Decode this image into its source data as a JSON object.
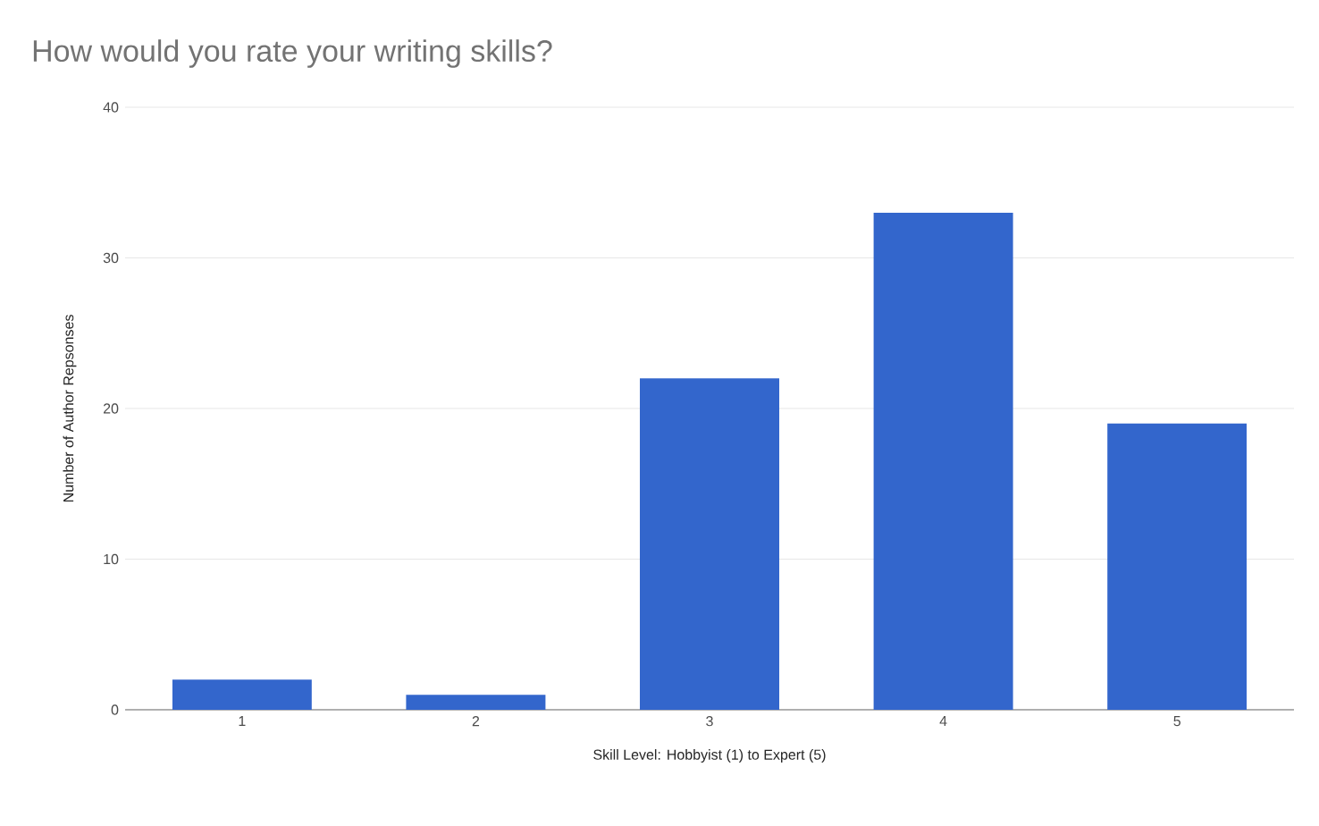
{
  "chart_data": {
    "type": "bar",
    "title": "How would you rate your writing skills?",
    "xlabel": "Skill Level: Hobbyist (1) to Expert (5)",
    "ylabel": "Number of Author Repsonses",
    "categories": [
      "1",
      "2",
      "3",
      "4",
      "5"
    ],
    "values": [
      2,
      1,
      22,
      33,
      19
    ],
    "color": "#3366cc",
    "ylim": [
      0,
      40
    ],
    "yticks": [
      0,
      10,
      20,
      30,
      40
    ],
    "grid": "y"
  }
}
